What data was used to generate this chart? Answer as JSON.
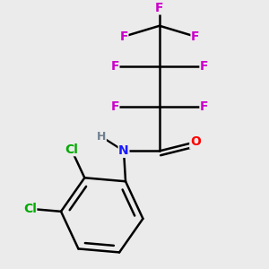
{
  "bg_color": "#ebebeb",
  "atom_colors": {
    "C": "#000000",
    "H": "#708090",
    "N": "#1a1aff",
    "O": "#ff0000",
    "F": "#cc00cc",
    "Cl": "#00aa00"
  },
  "bond_color": "#000000",
  "bond_width": 1.8,
  "font_size": 10,
  "fig_size": [
    3.0,
    3.0
  ],
  "dpi": 100
}
